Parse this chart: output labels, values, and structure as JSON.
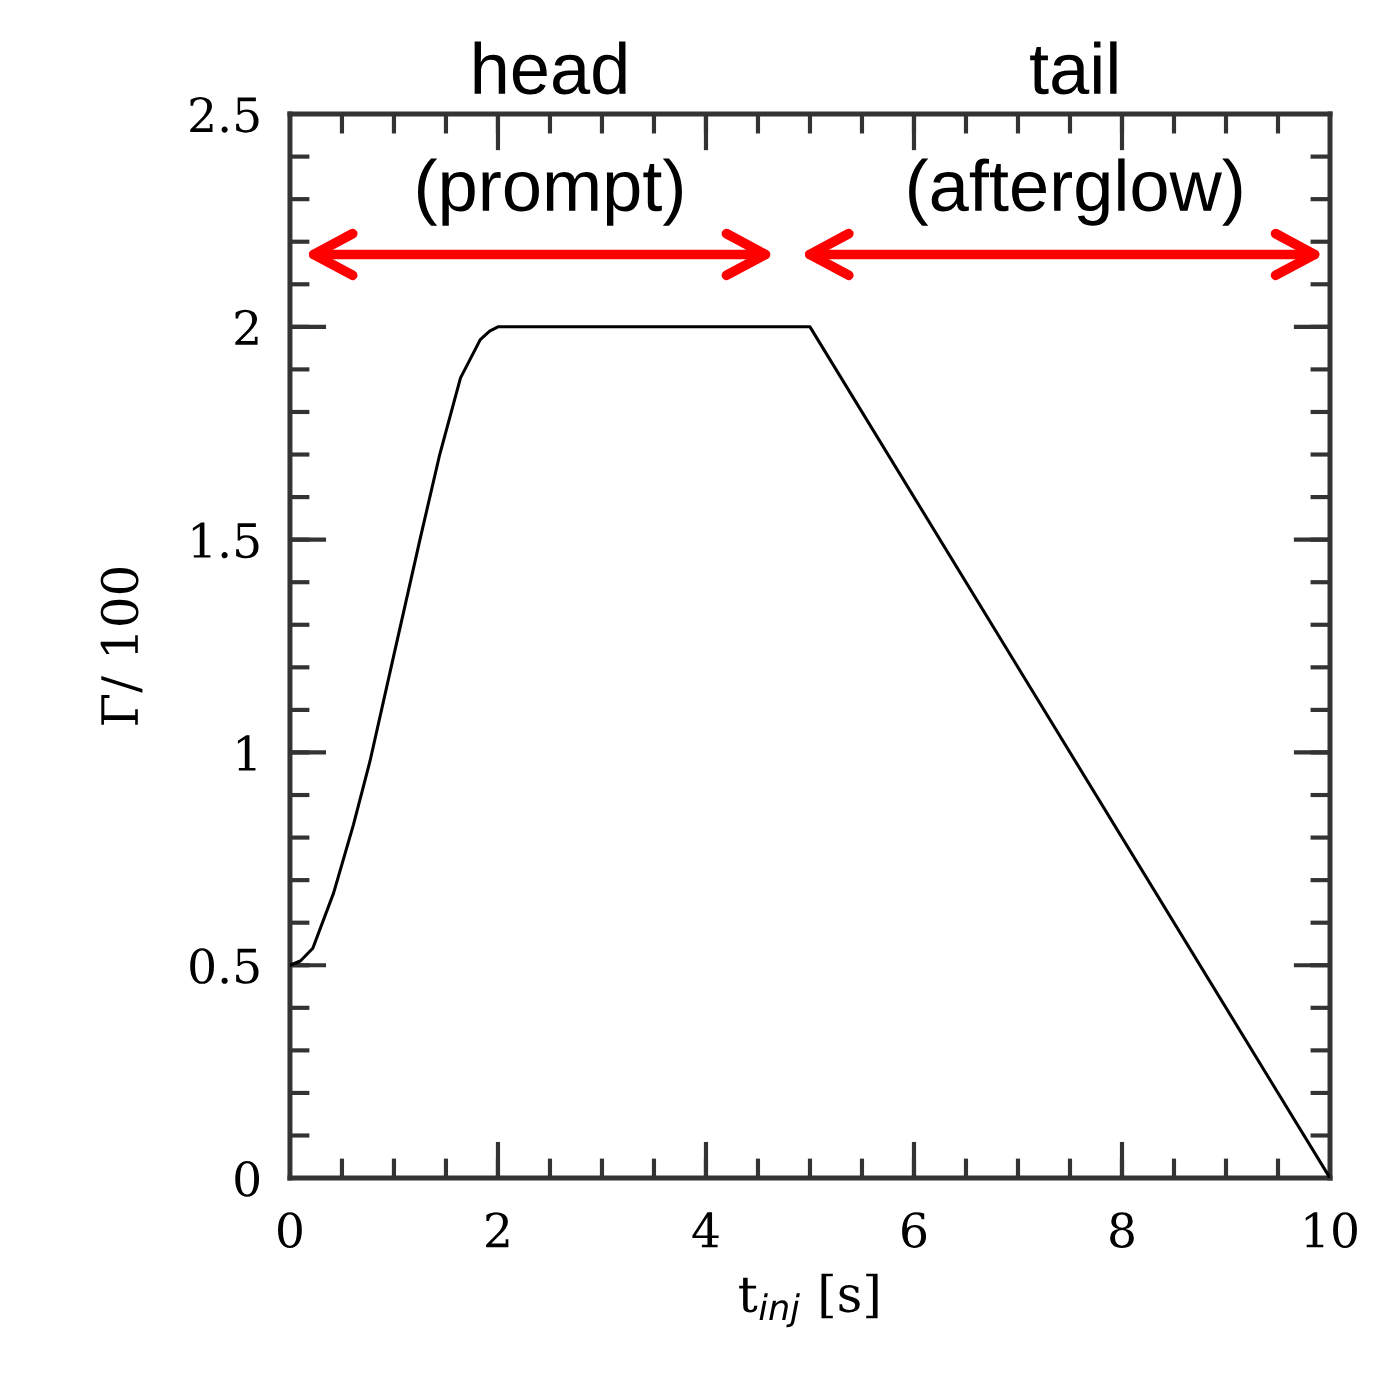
{
  "chart_data": {
    "type": "line",
    "xlabel": "t$_{inj}$ [s]",
    "ylabel": "Γ/ 100",
    "x": [
      0,
      0.1,
      0.22,
      0.42,
      0.61,
      0.77,
      1.0,
      1.25,
      1.44,
      1.64,
      1.83,
      1.92,
      2.0,
      5.0,
      10.0
    ],
    "series": [
      {
        "color": "#000000",
        "values": [
          0.5,
          0.51,
          0.54,
          0.67,
          0.83,
          0.98,
          1.23,
          1.5,
          1.7,
          1.88,
          1.97,
          1.99,
          2.0,
          2.0,
          0.0
        ]
      }
    ],
    "xlim": [
      0,
      10
    ],
    "ylim": [
      0,
      2.5
    ],
    "xticks": [
      0,
      2,
      4,
      6,
      8,
      10
    ],
    "yticks": [
      0,
      0.5,
      1,
      1.5,
      2,
      2.5
    ],
    "marker": "none",
    "line_style": "solid",
    "annotations": [
      "head\n(prompt)",
      "tail\n(afterglow)"
    ]
  }
}
